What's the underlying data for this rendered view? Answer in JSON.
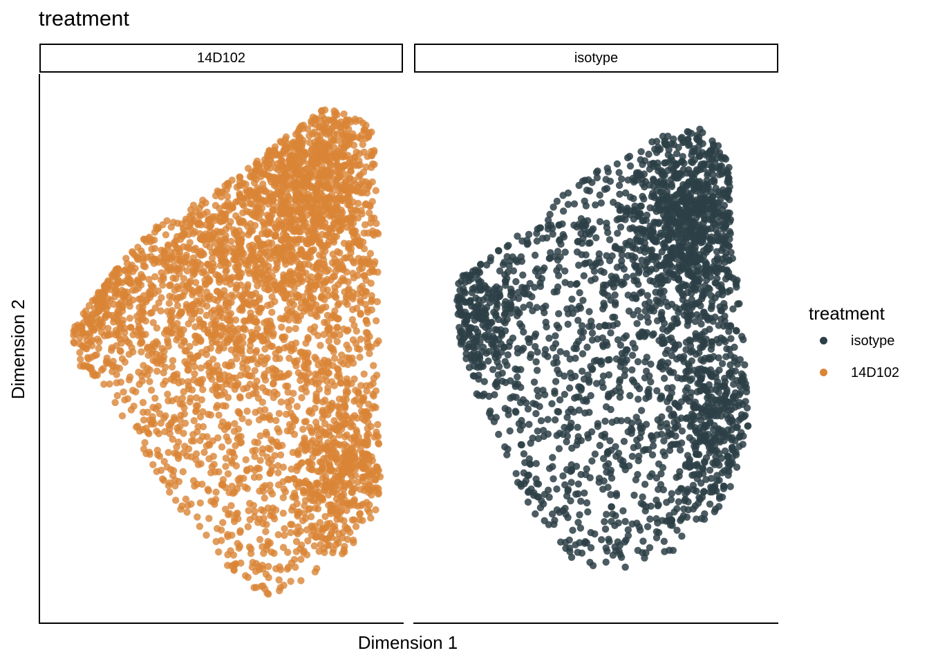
{
  "chart_data": {
    "type": "scatter",
    "title": "treatment",
    "xlabel": "Dimension 1",
    "ylabel": "Dimension 2",
    "x_ticks": [],
    "y_ticks": [],
    "xlim": [
      0,
      100
    ],
    "ylim": [
      0,
      100
    ],
    "grid": false,
    "legend_position": "right",
    "legend": {
      "title": "treatment",
      "items": [
        {
          "label": "isotype",
          "color": "#2d3f47"
        },
        {
          "label": "14D102",
          "color": "#d98436"
        }
      ]
    },
    "facets": [
      {
        "label": "14D102",
        "series": "14D102",
        "color": "#d98436",
        "n_points": 3600,
        "point_alpha": 0.8,
        "hull": [
          [
            5,
            53
          ],
          [
            16,
            63
          ],
          [
            32,
            74
          ],
          [
            48,
            79
          ],
          [
            62,
            86
          ],
          [
            70,
            90
          ],
          [
            81,
            95
          ],
          [
            94,
            93
          ],
          [
            96,
            80
          ],
          [
            97,
            57
          ],
          [
            96,
            37
          ],
          [
            97,
            25
          ],
          [
            95,
            18
          ],
          [
            85,
            11
          ],
          [
            70,
            5
          ],
          [
            64,
            4
          ],
          [
            57,
            5
          ],
          [
            47,
            13
          ],
          [
            37,
            20
          ],
          [
            25,
            32
          ],
          [
            15,
            43
          ],
          [
            7,
            47
          ]
        ],
        "density_peaks": [
          {
            "x": 11,
            "y": 61,
            "weight": 1.3,
            "spread": 8
          },
          {
            "x": 76,
            "y": 80,
            "weight": 1.6,
            "spread": 11
          },
          {
            "x": 86,
            "y": 28,
            "weight": 1.0,
            "spread": 8
          },
          {
            "x": 50,
            "y": 66,
            "weight": 0.7,
            "spread": 14
          }
        ]
      },
      {
        "label": "isotype",
        "series": "isotype",
        "color": "#2d3f47",
        "n_points": 2500,
        "point_alpha": 0.85,
        "hull": [
          [
            8,
            63
          ],
          [
            18,
            67
          ],
          [
            30,
            73
          ],
          [
            44,
            81
          ],
          [
            58,
            86
          ],
          [
            70,
            90
          ],
          [
            80,
            91
          ],
          [
            89,
            86
          ],
          [
            90,
            69
          ],
          [
            93,
            56
          ],
          [
            94,
            45
          ],
          [
            95,
            36
          ],
          [
            91,
            26
          ],
          [
            86,
            19
          ],
          [
            72,
            12
          ],
          [
            55,
            8
          ],
          [
            41,
            11
          ],
          [
            30,
            20
          ],
          [
            22,
            30
          ],
          [
            15,
            40
          ],
          [
            9,
            51
          ]
        ],
        "density_peaks": [
          {
            "x": 13,
            "y": 57,
            "weight": 1.1,
            "spread": 7
          },
          {
            "x": 78,
            "y": 73,
            "weight": 1.6,
            "spread": 10
          },
          {
            "x": 84,
            "y": 36,
            "weight": 0.8,
            "spread": 8
          }
        ]
      }
    ]
  }
}
